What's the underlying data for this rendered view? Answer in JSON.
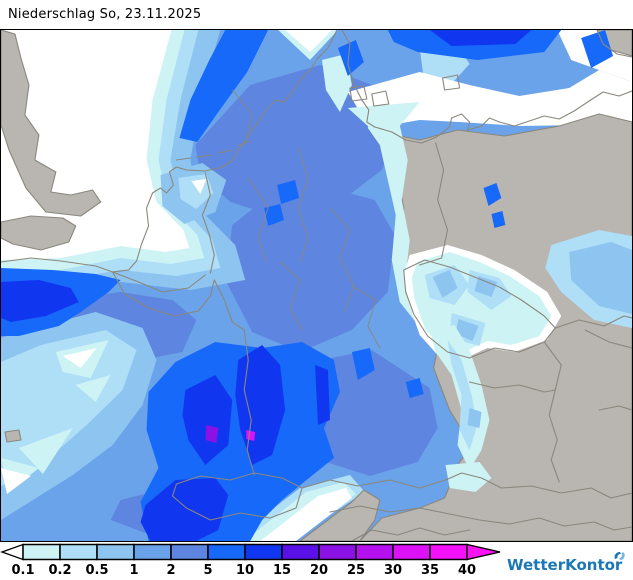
{
  "title": "Niederschlag So, 23.11.2025",
  "legend": {
    "tick_labels": [
      "0.1",
      "0.2",
      "0.5",
      "1",
      "2",
      "5",
      "10",
      "15",
      "20",
      "25",
      "30",
      "35",
      "40"
    ],
    "band_colors": [
      "#cdf3f5",
      "#aedff7",
      "#8ec4f0",
      "#6ba3ea",
      "#5e86e0",
      "#1769fa",
      "#1136f0",
      "#5a11e8",
      "#8c11e4",
      "#b511ef",
      "#dc11f7",
      "#f611fb"
    ],
    "underflow_color": "#ffffff",
    "overflow_color": "#f714f0"
  },
  "map": {
    "dry_land_color": "#b9b6b2",
    "sea_dry_color": "#ffffff",
    "border_line_color": "#8a877c",
    "frame_color": "#000000"
  },
  "branding": {
    "logo_text": "WetterKontor",
    "logo_color": "#1a78b6",
    "logo_accent_color": "#7db6d9"
  }
}
